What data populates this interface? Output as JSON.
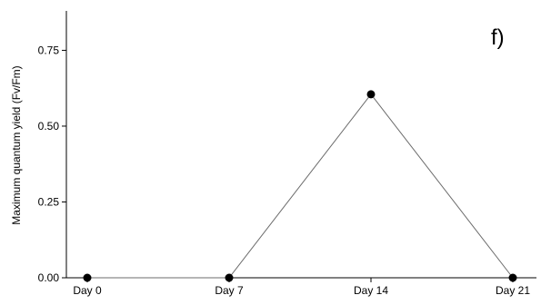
{
  "chart_data": {
    "type": "line",
    "categories": [
      "Day 0",
      "Day 7",
      "Day 14",
      "Day 21"
    ],
    "series": [
      {
        "values": [
          0.0,
          0.0,
          0.605,
          0.0
        ]
      }
    ],
    "ylabel": "Maximum quantum yield (Fv/Fm)",
    "xlabel": "",
    "ylim": [
      0,
      0.88
    ],
    "yticks": [
      0.0,
      0.25,
      0.5,
      0.75
    ],
    "ytick_labels": [
      "0.00",
      "0.25",
      "0.50",
      "0.75"
    ],
    "panel_label": "f)",
    "grid": false,
    "colors": {
      "line": "#6b6b6b",
      "marker": "#000000",
      "axis": "#000000"
    }
  }
}
